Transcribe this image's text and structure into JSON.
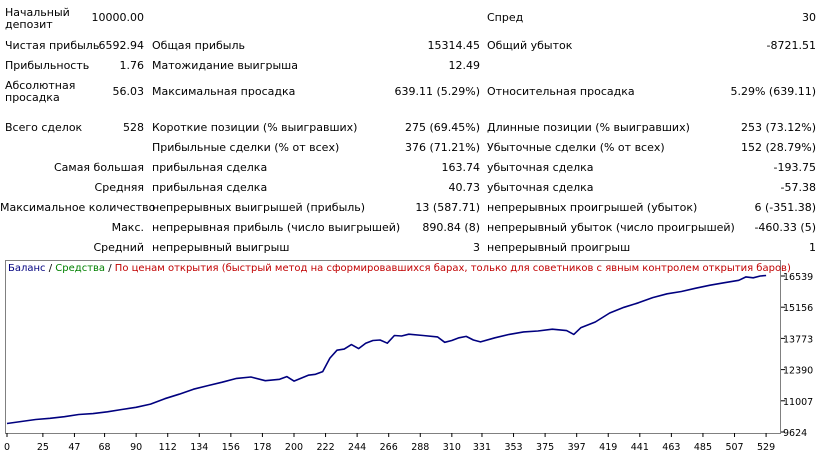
{
  "report": {
    "initial_deposit_label": "Начальный депозит",
    "initial_deposit": "10000.00",
    "spread_label": "Спред",
    "spread": "30",
    "net_profit_label": "Чистая прибыль",
    "net_profit": "6592.94",
    "gross_profit_label": "Общая прибыль",
    "gross_profit": "15314.45",
    "gross_loss_label": "Общий убыток",
    "gross_loss": "-8721.51",
    "profit_factor_label": "Прибыльность",
    "profit_factor": "1.76",
    "expected_payoff_label": "Матожидание выигрыша",
    "expected_payoff": "12.49",
    "abs_drawdown_label": "Абсолютная просадка",
    "abs_drawdown": "56.03",
    "max_drawdown_label": "Максимальная просадка",
    "max_drawdown": "639.11 (5.29%)",
    "rel_drawdown_label": "Относительная просадка",
    "rel_drawdown": "5.29% (639.11)",
    "total_trades_label": "Всего сделок",
    "total_trades": "528",
    "short_pos_label": "Короткие позиции (% выигравших)",
    "short_pos": "275 (69.45%)",
    "long_pos_label": "Длинные позиции (% выигравших)",
    "long_pos": "253 (73.12%)",
    "profit_trades_label": "Прибыльные сделки (% от всех)",
    "profit_trades": "376 (71.21%)",
    "loss_trades_label": "Убыточные сделки (% от всех)",
    "loss_trades": "152 (28.79%)",
    "largest_label": "Самая большая",
    "largest_profit_label": "прибыльная сделка",
    "largest_profit": "163.74",
    "largest_loss_label": "убыточная сделка",
    "largest_loss": "-193.75",
    "average_label": "Средняя",
    "average_profit_label": "прибыльная сделка",
    "average_profit": "40.73",
    "average_loss_label": "убыточная сделка",
    "average_loss": "-57.38",
    "max_count_label": "Максимальное количество",
    "max_cons_wins_label": "непрерывных выигрышей (прибыль)",
    "max_cons_wins": "13 (587.71)",
    "max_cons_losses_label": "непрерывных проигрышей (убыток)",
    "max_cons_losses": "6 (-351.38)",
    "max_label": "Макс.",
    "max_cons_profit_label": "непрерывная прибыль (число выигрышей)",
    "max_cons_profit": "890.84 (8)",
    "max_cons_loss_label": "непрерывный убыток (число проигрышей)",
    "max_cons_loss": "-460.33 (5)",
    "avg_label": "Средний",
    "avg_cons_wins_label": "непрерывный выигрыш",
    "avg_cons_wins": "3",
    "avg_cons_losses_label": "непрерывный проигрыш",
    "avg_cons_losses": "1"
  },
  "legend": {
    "balance": "Баланс",
    "sep1": "/",
    "equity": "Средства",
    "sep2": "/",
    "method": "По ценам открытия (быстрый метод на сформировавшихся барах, только для советников с явным контролем открытия баров)"
  },
  "colors": {
    "balance_line": "#00007F",
    "equity_text": "#008000",
    "method_text": "#C00000",
    "balance_text": "#00007F"
  },
  "chart_data": {
    "type": "line",
    "title": "",
    "xlabel": "",
    "ylabel": "",
    "x_ticks": [
      0,
      25,
      47,
      68,
      90,
      112,
      134,
      156,
      178,
      200,
      222,
      244,
      266,
      288,
      310,
      331,
      353,
      375,
      397,
      419,
      441,
      463,
      485,
      507,
      529
    ],
    "y_ticks": [
      9624,
      11007,
      12390,
      13773,
      15156,
      16539
    ],
    "xlim": [
      0,
      538
    ],
    "ylim": [
      9624,
      17071
    ],
    "grid": false,
    "legend_position": "top-left",
    "series": [
      {
        "name": "Баланс",
        "x": [
          0,
          10,
          20,
          30,
          40,
          50,
          60,
          70,
          80,
          90,
          100,
          110,
          120,
          130,
          140,
          150,
          160,
          170,
          180,
          190,
          195,
          200,
          210,
          215,
          220,
          225,
          230,
          235,
          240,
          245,
          250,
          255,
          260,
          265,
          270,
          275,
          280,
          290,
          300,
          305,
          310,
          315,
          320,
          325,
          330,
          340,
          350,
          360,
          370,
          380,
          390,
          395,
          400,
          410,
          420,
          430,
          440,
          450,
          460,
          470,
          480,
          490,
          500,
          510,
          515,
          520,
          525,
          529
        ],
        "y": [
          10000,
          10090,
          10180,
          10230,
          10300,
          10400,
          10440,
          10520,
          10620,
          10720,
          10860,
          11100,
          11300,
          11520,
          11680,
          11830,
          12000,
          12060,
          11900,
          11960,
          12080,
          11880,
          12140,
          12180,
          12300,
          12900,
          13250,
          13300,
          13500,
          13320,
          13560,
          13680,
          13700,
          13560,
          13900,
          13880,
          13960,
          13900,
          13840,
          13600,
          13680,
          13800,
          13860,
          13700,
          13620,
          13800,
          13950,
          14060,
          14100,
          14180,
          14120,
          13950,
          14250,
          14500,
          14900,
          15150,
          15350,
          15580,
          15750,
          15850,
          16000,
          16130,
          16240,
          16350,
          16500,
          16460,
          16540,
          16560
        ]
      }
    ]
  }
}
